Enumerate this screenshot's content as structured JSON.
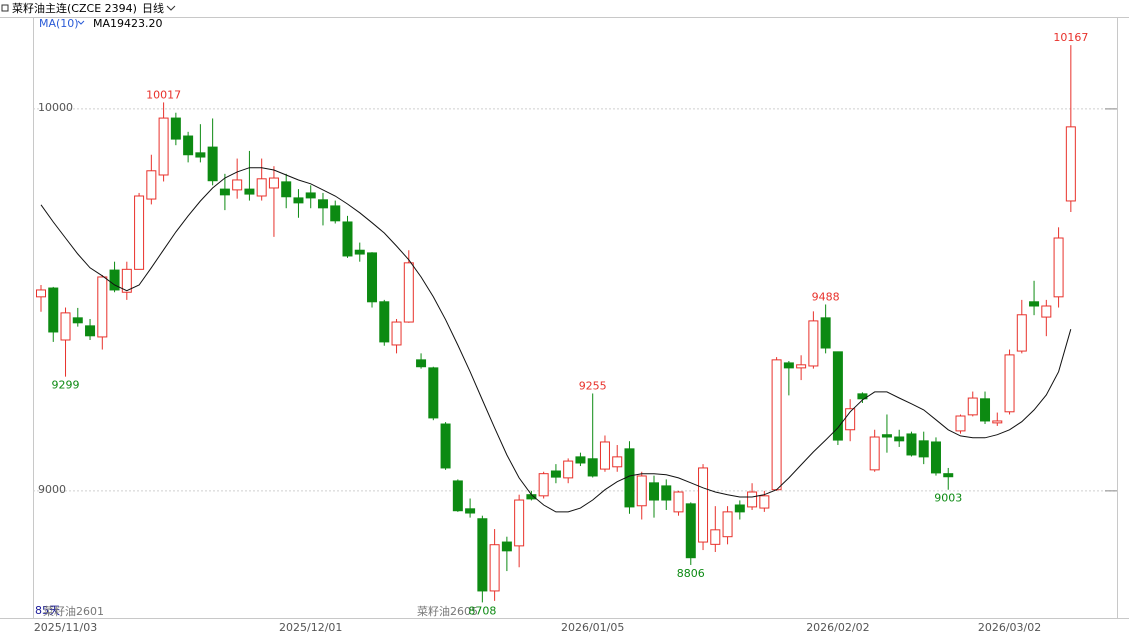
{
  "chart_data": {
    "type": "candlestick",
    "title": "菜籽油主连(CZCE 2394)",
    "period": "日线",
    "indicator": "MA(10)",
    "legend_value": "9423.20",
    "bar_count_label": "85天",
    "contracts": [
      "菜籽油2601",
      "菜籽油2605"
    ],
    "up_color": "#e8312b",
    "down_color": "#0c8a12",
    "ylim": [
      8675,
      10238
    ],
    "yticks": [
      10000,
      9000
    ],
    "grid": true,
    "categories": [
      null,
      null,
      "2025/11/03",
      null,
      null,
      null,
      null,
      null,
      null,
      null,
      null,
      null,
      null,
      null,
      null,
      null,
      null,
      null,
      null,
      null,
      null,
      null,
      "2025/12/01",
      null,
      null,
      null,
      null,
      null,
      null,
      null,
      null,
      null,
      null,
      null,
      null,
      null,
      null,
      null,
      null,
      null,
      null,
      null,
      null,
      null,
      null,
      "2026/01/05",
      null,
      null,
      null,
      null,
      null,
      null,
      null,
      null,
      null,
      null,
      null,
      null,
      null,
      null,
      null,
      null,
      null,
      null,
      null,
      "2026/02/02",
      null,
      null,
      null,
      null,
      null,
      null,
      null,
      null,
      null,
      null,
      null,
      null,
      null,
      "2026/03/02",
      null,
      null,
      null,
      null,
      null
    ],
    "open": [
      9508,
      9531,
      9395,
      9453,
      9432,
      9403,
      9578,
      9520,
      9580,
      9764,
      9827,
      9976,
      9929,
      9885,
      9900,
      9790,
      9788,
      9790,
      9772,
      9793,
      9809,
      9767,
      9780,
      9762,
      9746,
      9704,
      9630,
      9623,
      9495,
      9382,
      9442,
      9343,
      9322,
      9175,
      9026,
      8953,
      8927,
      8738,
      8866,
      8856,
      8990,
      8987,
      9052,
      9034,
      9089,
      9084,
      9057,
      9063,
      9110,
      8961,
      9021,
      9013,
      8945,
      8966,
      8866,
      8860,
      8880,
      8963,
      8958,
      8955,
      9003,
      9335,
      9322,
      9327,
      9453,
      9364,
      9160,
      9254,
      9055,
      9147,
      9141,
      9149,
      9131,
      9128,
      9045,
      9157,
      9199,
      9241,
      9178,
      9207,
      9366,
      9495,
      9455,
      9508,
      9759
    ],
    "high": [
      9539,
      9534,
      9480,
      9479,
      9450,
      9565,
      9600,
      9600,
      9780,
      9880,
      10017,
      9990,
      9940,
      9960,
      9975,
      9830,
      9870,
      9890,
      9870,
      9850,
      9830,
      9790,
      9800,
      9780,
      9760,
      9720,
      9650,
      9625,
      9500,
      9450,
      9630,
      9360,
      9325,
      9180,
      9030,
      8980,
      8935,
      8900,
      8880,
      8990,
      9000,
      9050,
      9070,
      9085,
      9100,
      9255,
      9145,
      9120,
      9130,
      9050,
      9040,
      9030,
      9000,
      8970,
      9070,
      8960,
      8960,
      8975,
      9020,
      9000,
      9350,
      9340,
      9355,
      9470,
      9488,
      9365,
      9240,
      9258,
      9160,
      9200,
      9160,
      9155,
      9155,
      9140,
      9060,
      9200,
      9260,
      9260,
      9205,
      9370,
      9500,
      9550,
      9500,
      9690,
      10167
    ],
    "low": [
      9469,
      9390,
      9299,
      9430,
      9395,
      9370,
      9520,
      9500,
      9580,
      9750,
      9810,
      9905,
      9860,
      9860,
      9800,
      9735,
      9765,
      9760,
      9760,
      9665,
      9740,
      9715,
      9740,
      9695,
      9700,
      9610,
      9600,
      9480,
      9380,
      9360,
      9440,
      9320,
      9185,
      9055,
      8945,
      8930,
      8708,
      8712,
      8790,
      8800,
      8975,
      8980,
      9020,
      9020,
      9065,
      9035,
      9050,
      9050,
      8940,
      8925,
      8930,
      8950,
      8935,
      8806,
      8845,
      8840,
      8860,
      8925,
      8950,
      8945,
      9000,
      9250,
      9290,
      9320,
      9360,
      9120,
      9130,
      9230,
      9050,
      9100,
      9115,
      9090,
      9070,
      9040,
      9003,
      9150,
      9195,
      9175,
      9170,
      9200,
      9360,
      9460,
      9405,
      9480,
      9730
    ],
    "close": [
      9526,
      9416,
      9466,
      9440,
      9406,
      9560,
      9526,
      9580,
      9772,
      9838,
      9976,
      9921,
      9880,
      9874,
      9812,
      9775,
      9814,
      9777,
      9817,
      9819,
      9770,
      9754,
      9767,
      9741,
      9707,
      9615,
      9620,
      9495,
      9390,
      9442,
      9597,
      9325,
      9191,
      9060,
      8948,
      8942,
      8738,
      8859,
      8843,
      8976,
      8979,
      9045,
      9036,
      9078,
      9073,
      9039,
      9128,
      9089,
      8958,
      9039,
      8976,
      8976,
      8997,
      8825,
      9060,
      8898,
      8945,
      8945,
      8997,
      8987,
      9343,
      9322,
      9330,
      9445,
      9374,
      9133,
      9215,
      9241,
      9141,
      9141,
      9131,
      9094,
      9089,
      9047,
      9037,
      9196,
      9243,
      9183,
      9183,
      9356,
      9461,
      9484,
      9484,
      9662,
      9953
    ],
    "ma": {
      "name": "MA1",
      "color": "#111111",
      "values": [
        9749,
        9704,
        9662,
        9620,
        9584,
        9563,
        9539,
        9524,
        9539,
        9584,
        9631,
        9678,
        9720,
        9759,
        9793,
        9819,
        9835,
        9846,
        9846,
        9840,
        9827,
        9814,
        9804,
        9788,
        9772,
        9751,
        9728,
        9702,
        9675,
        9641,
        9605,
        9560,
        9508,
        9448,
        9382,
        9312,
        9238,
        9165,
        9094,
        9034,
        8990,
        8963,
        8945,
        8945,
        8955,
        8976,
        9003,
        9024,
        9039,
        9045,
        9045,
        9042,
        9034,
        9021,
        9008,
        8997,
        8990,
        8984,
        8984,
        8990,
        9003,
        9034,
        9068,
        9102,
        9133,
        9165,
        9207,
        9238,
        9259,
        9259,
        9243,
        9228,
        9212,
        9186,
        9160,
        9144,
        9139,
        9139,
        9147,
        9160,
        9181,
        9212,
        9251,
        9312,
        9423.2
      ]
    },
    "annotations": [
      10017,
      9299,
      9255,
      9488,
      8806,
      9003,
      10167,
      8708
    ]
  }
}
